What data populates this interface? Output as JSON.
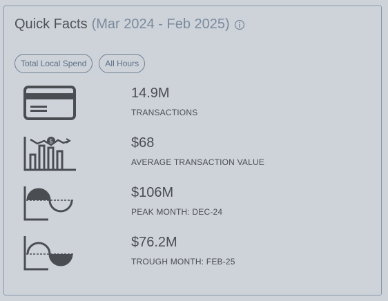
{
  "header": {
    "title": "Quick Facts",
    "range": "(Mar 2024 - Feb 2025)"
  },
  "filters": {
    "spend": "Total Local Spend",
    "hours": "All Hours"
  },
  "facts": [
    {
      "icon": "credit-card-icon",
      "value": "14.9M",
      "label": "TRANSACTIONS"
    },
    {
      "icon": "bar-chart-dollar-icon",
      "value": "$68",
      "label": "AVERAGE TRANSACTION VALUE"
    },
    {
      "icon": "peak-wave-icon",
      "value": "$106M",
      "label": "PEAK MONTH: DEC-24"
    },
    {
      "icon": "trough-wave-icon",
      "value": "$76.2M",
      "label": "TROUGH MONTH: FEB-25"
    }
  ],
  "colors": {
    "background": "#ced3da",
    "icon": "#4a4d52",
    "accent": "#6e7f92"
  }
}
